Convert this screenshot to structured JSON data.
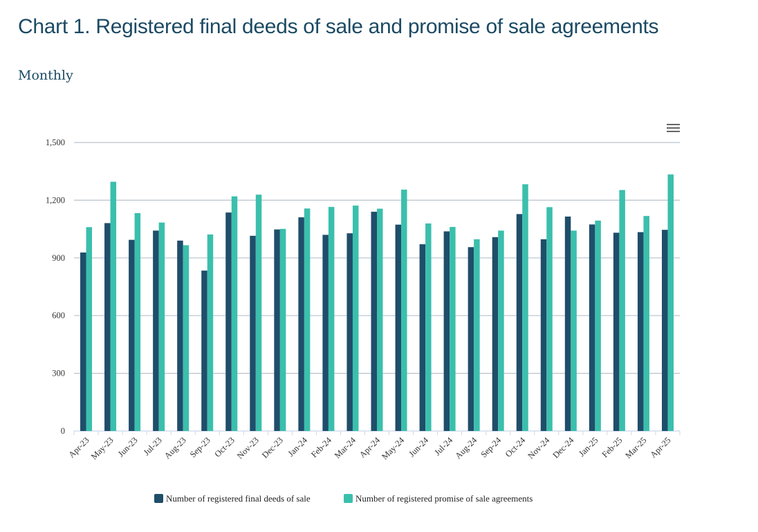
{
  "title": "Chart 1. Registered final deeds of sale and promise of sale agreements",
  "subtitle": "Monthly",
  "menu_icon": "hamburger-menu-icon",
  "chart_data": {
    "type": "bar",
    "categories": [
      "Apr-23",
      "May-23",
      "Jun-23",
      "Jul-23",
      "Aug-23",
      "Sep-23",
      "Oct-23",
      "Nov-23",
      "Dec-23",
      "Jan-24",
      "Feb-24",
      "Mar-24",
      "Apr-24",
      "May-24",
      "Jun-24",
      "Jul-24",
      "Aug-24",
      "Sep-24",
      "Oct-24",
      "Nov-24",
      "Dec-24",
      "Jan-25",
      "Feb-25",
      "Mar-25",
      "Apr-25"
    ],
    "series": [
      {
        "name": "Number of registered final deeds of sale",
        "color": "#1f4e6a",
        "values": [
          928,
          1081,
          994,
          1042,
          990,
          834,
          1136,
          1015,
          1048,
          1111,
          1020,
          1028,
          1140,
          1073,
          971,
          1038,
          956,
          1008,
          1128,
          997,
          1115,
          1074,
          1031,
          1034,
          1046
        ]
      },
      {
        "name": "Number of registered promise of sale agreements",
        "color": "#3bbfad",
        "values": [
          1060,
          1296,
          1133,
          1084,
          966,
          1022,
          1220,
          1229,
          1051,
          1157,
          1165,
          1172,
          1156,
          1255,
          1079,
          1061,
          997,
          1042,
          1283,
          1164,
          1042,
          1094,
          1253,
          1118,
          1334
        ]
      }
    ],
    "yticks": [
      "0",
      "300",
      "600",
      "900",
      "1,200",
      "1,500"
    ],
    "ylim": [
      0,
      1500
    ],
    "xlabel": "",
    "ylabel": "",
    "grid": true,
    "legend_position": "bottom"
  }
}
